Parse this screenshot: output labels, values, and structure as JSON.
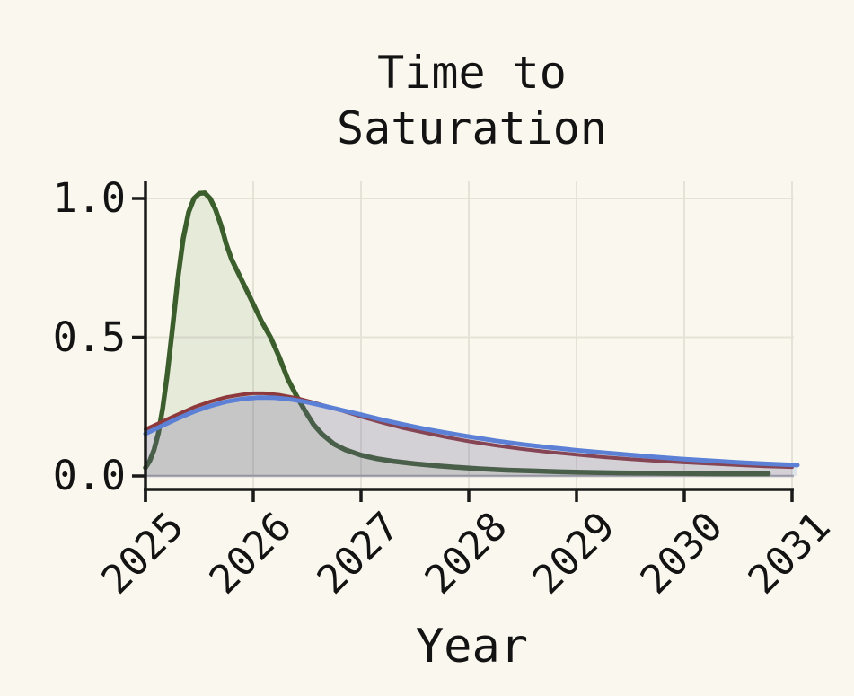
{
  "figure": {
    "title_line1": "Time to",
    "title_line2": "Saturation",
    "xlabel": "Year"
  },
  "colors": {
    "background": "#faf8ee",
    "text": "#131313",
    "spine": "#1a1a1a",
    "grid": "#e5e3d8",
    "zero_line": "#aaa8b2",
    "green_line": "#3c5e2d",
    "green_fill": "rgba(104,138,74,0.13)",
    "red_line": "#8e3a3c",
    "red_fill": "rgba(142,58,62,0.13)",
    "blue_line": "#5c80d6",
    "blue_fill": "rgba(95,130,214,0.16)"
  },
  "chart_data": {
    "type": "area",
    "title": "Time to Saturation",
    "xlabel": "Year",
    "ylabel": "",
    "xlim": [
      2025,
      2031.05
    ],
    "ylim": [
      -0.05,
      1.06
    ],
    "grid": true,
    "legend_position": "none",
    "xticks": {
      "values": [
        2025,
        2026,
        2027,
        2028,
        2029,
        2030,
        2031
      ],
      "labels": [
        "2025",
        "2026",
        "2027",
        "2028",
        "2029",
        "2030",
        "2031"
      ]
    },
    "yticks": {
      "values": [
        0.0,
        0.5,
        1.0
      ],
      "labels": [
        "0.0",
        "0.5",
        "1.0"
      ]
    },
    "grid_x_years": [
      2026,
      2027,
      2028,
      2029,
      2030,
      2031
    ],
    "grid_y_values": [
      0.5,
      1.0
    ],
    "zero_line_value": 0.0,
    "series": [
      {
        "name": "green-distribution",
        "color_key": "green",
        "line_width": 5.5,
        "peak": {
          "x": 2025.53,
          "y": 1.02
        },
        "points": [
          [
            2025.0,
            0.03
          ],
          [
            2025.04,
            0.055
          ],
          [
            2025.08,
            0.095
          ],
          [
            2025.12,
            0.155
          ],
          [
            2025.16,
            0.245
          ],
          [
            2025.2,
            0.36
          ],
          [
            2025.25,
            0.53
          ],
          [
            2025.3,
            0.71
          ],
          [
            2025.35,
            0.855
          ],
          [
            2025.4,
            0.95
          ],
          [
            2025.45,
            1.0
          ],
          [
            2025.5,
            1.018
          ],
          [
            2025.55,
            1.02
          ],
          [
            2025.6,
            1.0
          ],
          [
            2025.65,
            0.96
          ],
          [
            2025.7,
            0.905
          ],
          [
            2025.75,
            0.835
          ],
          [
            2025.8,
            0.78
          ],
          [
            2025.9,
            0.7
          ],
          [
            2026.0,
            0.62
          ],
          [
            2026.08,
            0.555
          ],
          [
            2026.16,
            0.5
          ],
          [
            2026.24,
            0.43
          ],
          [
            2026.32,
            0.35
          ],
          [
            2026.4,
            0.29
          ],
          [
            2026.48,
            0.235
          ],
          [
            2026.56,
            0.185
          ],
          [
            2026.64,
            0.15
          ],
          [
            2026.75,
            0.115
          ],
          [
            2026.85,
            0.095
          ],
          [
            2027.0,
            0.075
          ],
          [
            2027.15,
            0.062
          ],
          [
            2027.3,
            0.053
          ],
          [
            2027.5,
            0.044
          ],
          [
            2027.7,
            0.037
          ],
          [
            2027.9,
            0.031
          ],
          [
            2028.1,
            0.026
          ],
          [
            2028.35,
            0.021
          ],
          [
            2028.6,
            0.018
          ],
          [
            2028.85,
            0.015
          ],
          [
            2029.1,
            0.013
          ],
          [
            2029.4,
            0.011
          ],
          [
            2029.7,
            0.01
          ],
          [
            2030.0,
            0.009
          ],
          [
            2030.4,
            0.008
          ],
          [
            2030.78,
            0.008
          ]
        ]
      },
      {
        "name": "red-distribution",
        "color_key": "red",
        "line_width": 4,
        "peak": {
          "x": 2026.0,
          "y": 0.3
        },
        "points": [
          [
            2025.0,
            0.168
          ],
          [
            2025.15,
            0.195
          ],
          [
            2025.3,
            0.222
          ],
          [
            2025.45,
            0.248
          ],
          [
            2025.6,
            0.268
          ],
          [
            2025.75,
            0.284
          ],
          [
            2025.9,
            0.294
          ],
          [
            2026.0,
            0.298
          ],
          [
            2026.1,
            0.298
          ],
          [
            2026.25,
            0.292
          ],
          [
            2026.4,
            0.281
          ],
          [
            2026.55,
            0.266
          ],
          [
            2026.7,
            0.249
          ],
          [
            2026.85,
            0.232
          ],
          [
            2027.0,
            0.214
          ],
          [
            2027.2,
            0.192
          ],
          [
            2027.4,
            0.172
          ],
          [
            2027.6,
            0.155
          ],
          [
            2027.8,
            0.139
          ],
          [
            2028.0,
            0.125
          ],
          [
            2028.25,
            0.11
          ],
          [
            2028.5,
            0.097
          ],
          [
            2028.75,
            0.086
          ],
          [
            2029.0,
            0.077
          ],
          [
            2029.25,
            0.068
          ],
          [
            2029.5,
            0.061
          ],
          [
            2029.75,
            0.054
          ],
          [
            2030.0,
            0.049
          ],
          [
            2030.25,
            0.044
          ],
          [
            2030.5,
            0.039
          ],
          [
            2030.75,
            0.035
          ],
          [
            2031.0,
            0.032
          ]
        ]
      },
      {
        "name": "blue-distribution",
        "color_key": "blue",
        "line_width": 5,
        "peak": {
          "x": 2026.05,
          "y": 0.283
        },
        "points": [
          [
            2025.0,
            0.152
          ],
          [
            2025.15,
            0.18
          ],
          [
            2025.3,
            0.207
          ],
          [
            2025.45,
            0.232
          ],
          [
            2025.6,
            0.252
          ],
          [
            2025.75,
            0.268
          ],
          [
            2025.9,
            0.278
          ],
          [
            2026.05,
            0.283
          ],
          [
            2026.2,
            0.282
          ],
          [
            2026.35,
            0.276
          ],
          [
            2026.5,
            0.266
          ],
          [
            2026.65,
            0.253
          ],
          [
            2026.8,
            0.239
          ],
          [
            2027.0,
            0.221
          ],
          [
            2027.2,
            0.202
          ],
          [
            2027.4,
            0.185
          ],
          [
            2027.6,
            0.169
          ],
          [
            2027.8,
            0.155
          ],
          [
            2028.0,
            0.142
          ],
          [
            2028.25,
            0.127
          ],
          [
            2028.5,
            0.114
          ],
          [
            2028.75,
            0.103
          ],
          [
            2029.0,
            0.093
          ],
          [
            2029.25,
            0.084
          ],
          [
            2029.5,
            0.076
          ],
          [
            2029.75,
            0.068
          ],
          [
            2030.0,
            0.061
          ],
          [
            2030.25,
            0.055
          ],
          [
            2030.5,
            0.049
          ],
          [
            2030.75,
            0.044
          ],
          [
            2031.0,
            0.04
          ],
          [
            2031.05,
            0.039
          ]
        ]
      }
    ]
  }
}
